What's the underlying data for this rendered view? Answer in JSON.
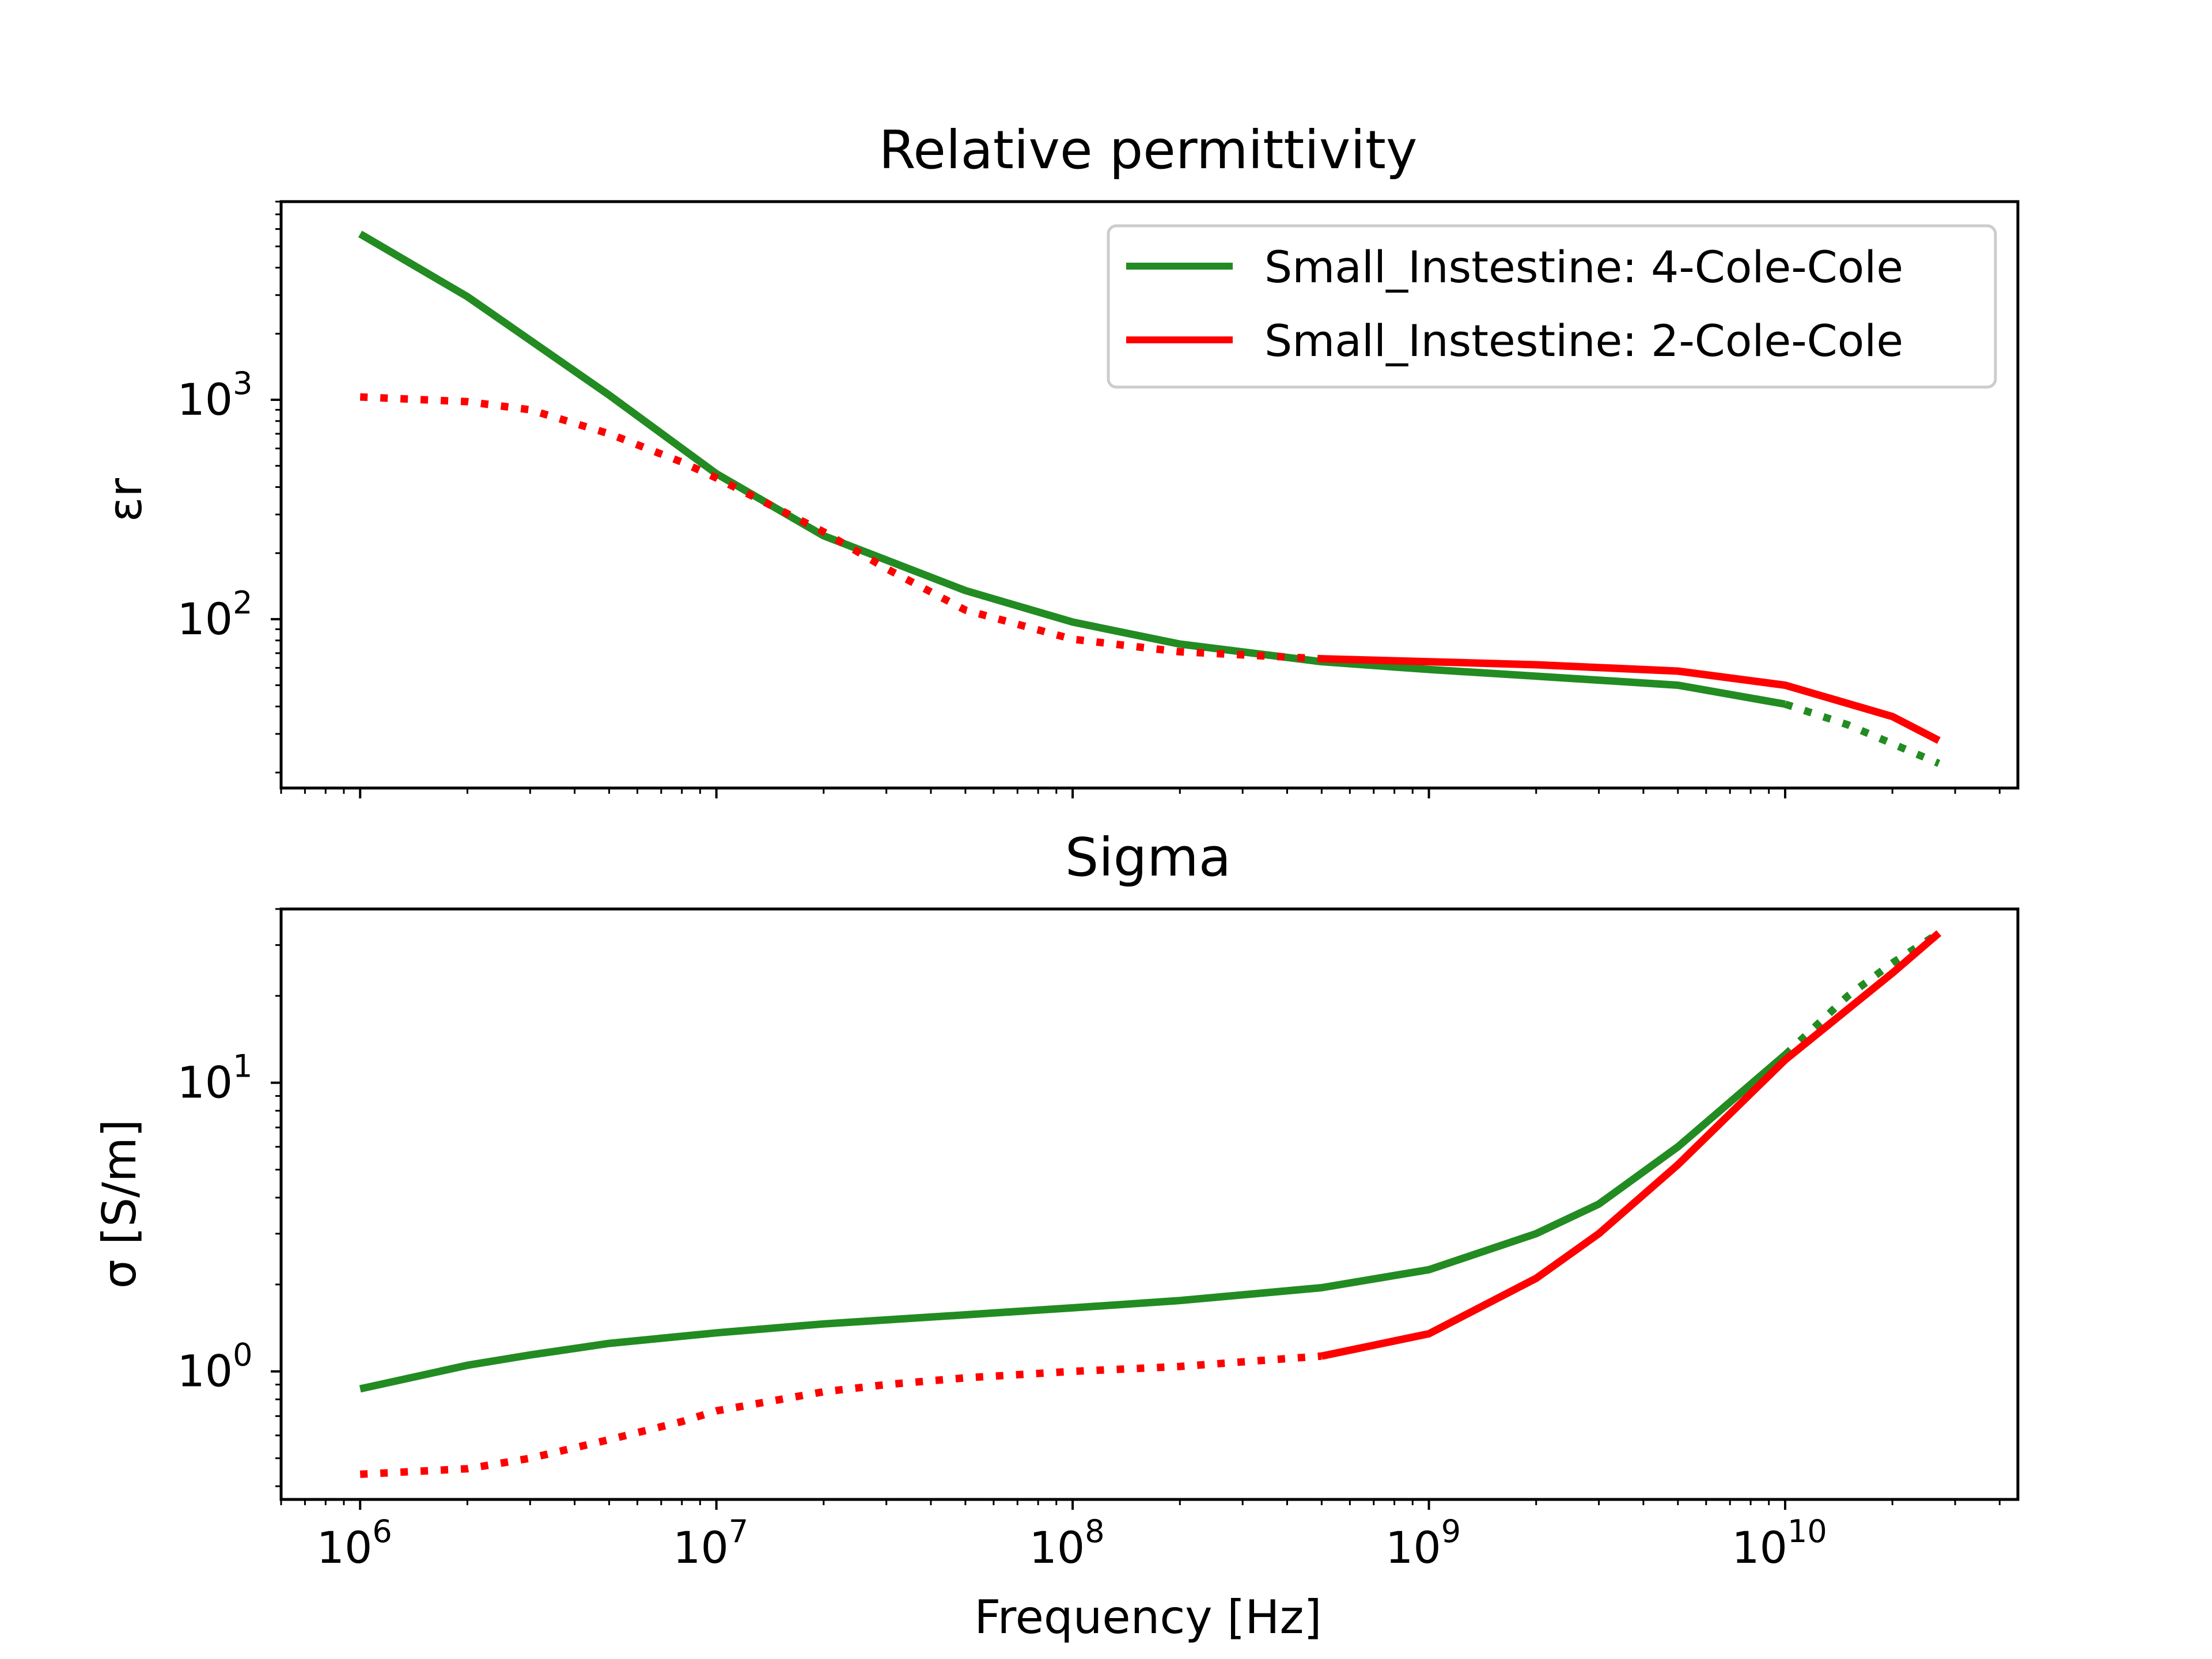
{
  "colors": {
    "model4": "#228b22",
    "model2": "#ff0000"
  },
  "chart_data": [
    {
      "type": "line",
      "title": "Relative permittivity",
      "xlabel": "",
      "ylabel": "εr",
      "xscale": "log",
      "yscale": "log",
      "xlim": [
        600000,
        45000000000
      ],
      "ylim": [
        17,
        8000
      ],
      "x_ticks": [
        1000000,
        10000000,
        100000000,
        1000000000,
        10000000000
      ],
      "y_ticks": [
        {
          "base": "10",
          "exp": "2",
          "value": 100
        },
        {
          "base": "10",
          "exp": "3",
          "value": 1000
        }
      ],
      "legend": {
        "position": "upper right",
        "entries": [
          "Small_Instestine: 4-Cole-Cole",
          "Small_Instestine: 2-Cole-Cole"
        ]
      },
      "series": [
        {
          "name": "Small_Instestine: 4-Cole-Cole",
          "color": "#228b22",
          "style": "solid",
          "x": [
            1000000,
            2000000,
            5000000,
            10000000,
            20000000,
            50000000,
            100000000,
            200000000,
            500000000,
            1000000000,
            2000000000,
            5000000000,
            10000000000
          ],
          "y": [
            5700,
            2950,
            1050,
            460,
            240,
            135,
            97,
            77,
            64,
            59,
            55,
            50,
            41
          ]
        },
        {
          "color": "#228b22",
          "style": "dotted",
          "x": [
            10000000000,
            15000000000,
            27000000000
          ],
          "y": [
            41,
            33,
            22
          ]
        },
        {
          "name": "Small_Instestine: 2-Cole-Cole",
          "color": "#ff0000",
          "style": "dotted",
          "x": [
            1000000,
            2000000,
            3000000,
            5000000,
            8000000,
            10000000,
            20000000,
            30000000,
            50000000,
            100000000,
            200000000,
            500000000
          ],
          "y": [
            1030,
            980,
            900,
            700,
            520,
            440,
            250,
            170,
            110,
            81,
            71,
            66
          ]
        },
        {
          "color": "#ff0000",
          "style": "solid",
          "x": [
            500000000,
            1000000000,
            2000000000,
            5000000000,
            10000000000,
            20000000000,
            27000000000
          ],
          "y": [
            66,
            64,
            62,
            58,
            50,
            36,
            28
          ]
        }
      ]
    },
    {
      "type": "line",
      "title": "Sigma",
      "xlabel": "Frequency [Hz]",
      "ylabel": "σ [S/m]",
      "xscale": "log",
      "yscale": "log",
      "xlim": [
        600000,
        45000000000
      ],
      "ylim": [
        0.36,
        40
      ],
      "x_ticks": [
        {
          "base": "10",
          "exp": "6",
          "value": 1000000
        },
        {
          "base": "10",
          "exp": "7",
          "value": 10000000
        },
        {
          "base": "10",
          "exp": "8",
          "value": 100000000
        },
        {
          "base": "10",
          "exp": "9",
          "value": 1000000000
        },
        {
          "base": "10",
          "exp": "10",
          "value": 10000000000
        }
      ],
      "y_ticks": [
        {
          "base": "10",
          "exp": "0",
          "value": 1
        },
        {
          "base": "10",
          "exp": "1",
          "value": 10
        }
      ],
      "series": [
        {
          "name": "Small_Instestine: 4-Cole-Cole",
          "color": "#228b22",
          "style": "solid",
          "x": [
            1000000,
            2000000,
            3000000,
            5000000,
            10000000,
            20000000,
            50000000,
            100000000,
            200000000,
            500000000,
            1000000000,
            2000000000,
            3000000000,
            5000000000,
            10000000000
          ],
          "y": [
            0.87,
            1.05,
            1.14,
            1.25,
            1.36,
            1.46,
            1.57,
            1.66,
            1.76,
            1.95,
            2.25,
            3.0,
            3.8,
            6.0,
            12.5
          ]
        },
        {
          "color": "#228b22",
          "style": "dotted",
          "x": [
            10000000000,
            15000000000,
            20000000000,
            27000000000
          ],
          "y": [
            12.5,
            20,
            26,
            33
          ]
        },
        {
          "name": "Small_Instestine: 2-Cole-Cole",
          "color": "#ff0000",
          "style": "dotted",
          "x": [
            1000000,
            2000000,
            3000000,
            5000000,
            8000000,
            10000000,
            20000000,
            30000000,
            50000000,
            100000000,
            200000000,
            500000000
          ],
          "y": [
            0.44,
            0.46,
            0.5,
            0.58,
            0.67,
            0.73,
            0.85,
            0.9,
            0.95,
            1.0,
            1.04,
            1.13
          ]
        },
        {
          "color": "#ff0000",
          "style": "solid",
          "x": [
            500000000,
            1000000000,
            2000000000,
            3000000000,
            5000000000,
            10000000000,
            20000000000,
            27000000000
          ],
          "y": [
            1.13,
            1.35,
            2.1,
            3.0,
            5.2,
            12,
            24,
            33
          ]
        }
      ]
    }
  ]
}
